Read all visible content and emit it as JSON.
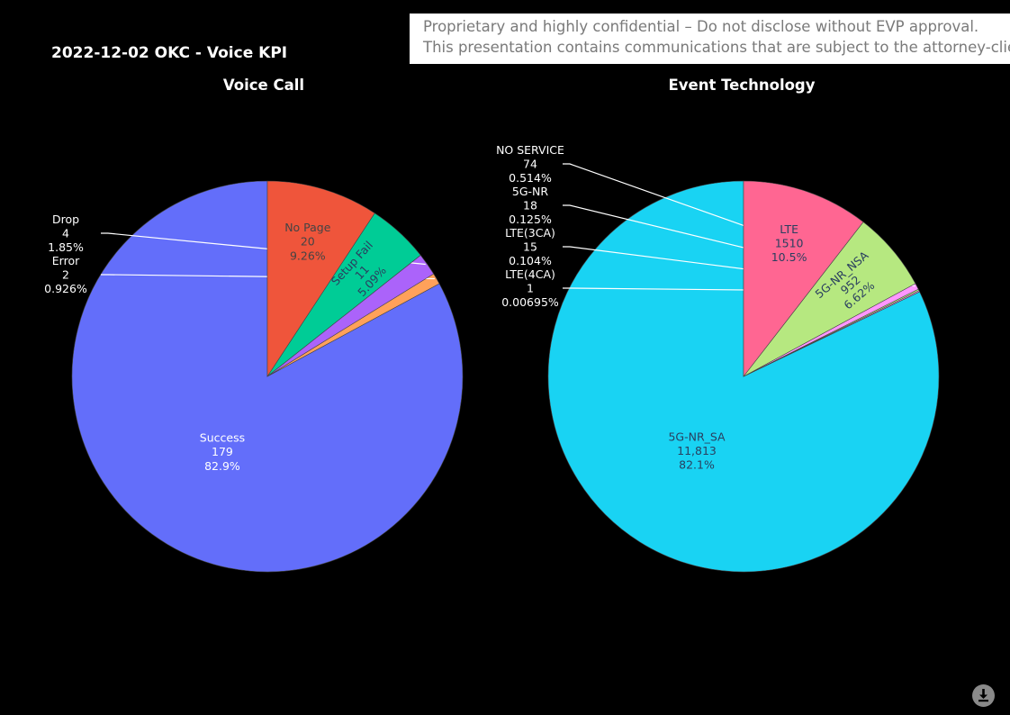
{
  "title": "2022-12-02 OKC - Voice KPI",
  "banner": {
    "line1": "Proprietary and highly confidential – Do not disclose without EVP approval.",
    "line2": "This presentation contains communications that are subject to the attorney-client privilege."
  },
  "toolbar": {
    "download_icon": "download-icon"
  },
  "chart_data": [
    {
      "type": "pie",
      "title": "Voice Call",
      "slices": [
        {
          "label": "Success",
          "value": 179,
          "percent": "82.9%",
          "value_text": "179",
          "color": "#636EFA",
          "text_color": "#ffffff",
          "placement": "inside"
        },
        {
          "label": "Error",
          "value": 2,
          "percent": "0.926%",
          "value_text": "2",
          "color": "#FFA15A",
          "text_color": "#ffffff",
          "placement": "outside"
        },
        {
          "label": "Drop",
          "value": 4,
          "percent": "1.85%",
          "value_text": "4",
          "color": "#AB63FA",
          "text_color": "#ffffff",
          "placement": "outside"
        },
        {
          "label": "Setup Fail",
          "value": 11,
          "percent": "5.09%",
          "value_text": "11",
          "color": "#00CC96",
          "text_color": "#2a3f5f",
          "placement": "radial"
        },
        {
          "label": "No Page",
          "value": 20,
          "percent": "9.26%",
          "value_text": "20",
          "color": "#EF553B",
          "text_color": "#444444",
          "placement": "inside"
        }
      ]
    },
    {
      "type": "pie",
      "title": "Event Technology",
      "slices": [
        {
          "label": "5G-NR_SA",
          "value": 11813,
          "percent": "82.1%",
          "value_text": "11,813",
          "color": "#19D3F3",
          "text_color": "#2a3f5f",
          "placement": "inside"
        },
        {
          "label": "LTE(4CA)",
          "value": 1,
          "percent": "0.00695%",
          "value_text": "1",
          "color": "#FECB52",
          "text_color": "#ffffff",
          "placement": "outside"
        },
        {
          "label": "LTE(3CA)",
          "value": 15,
          "percent": "0.104%",
          "value_text": "15",
          "color": "#FF97FF",
          "text_color": "#ffffff",
          "placement": "outside"
        },
        {
          "label": "5G-NR",
          "value": 18,
          "percent": "0.125%",
          "value_text": "18",
          "color": "#B6E880",
          "text_color": "#ffffff",
          "placement": "outside"
        },
        {
          "label": "NO SERVICE",
          "value": 74,
          "percent": "0.514%",
          "value_text": "74",
          "color": "#FF97FF",
          "text_color": "#ffffff",
          "placement": "outside"
        },
        {
          "label": "5G-NR_NSA",
          "value": 952,
          "percent": "6.62%",
          "value_text": "952",
          "color": "#B6E880",
          "text_color": "#2a3f5f",
          "placement": "radial"
        },
        {
          "label": "LTE",
          "value": 1510,
          "percent": "10.5%",
          "value_text": "1510",
          "color": "#FF6692",
          "text_color": "#2a3f5f",
          "placement": "inside"
        }
      ]
    }
  ]
}
